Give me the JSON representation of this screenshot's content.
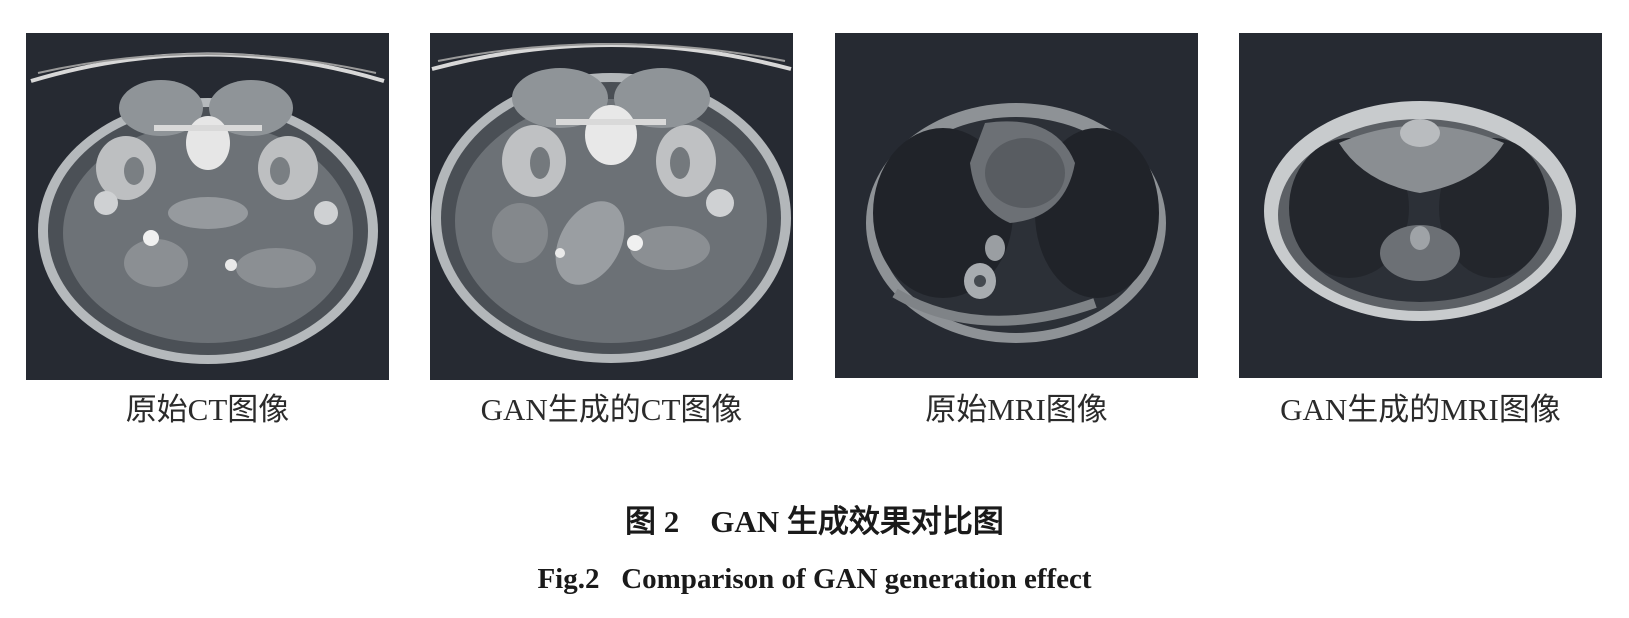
{
  "panels": [
    {
      "caption": "原始CT图像",
      "image": "axial-abdomen-ct-scan"
    },
    {
      "caption": "GAN生成的CT图像",
      "image": "axial-abdomen-ct-scan-generated"
    },
    {
      "caption": "原始MRI图像",
      "image": "axial-chest-mri-scan"
    },
    {
      "caption": "GAN生成的MRI图像",
      "image": "axial-chest-mri-scan-generated"
    }
  ],
  "figure": {
    "title_cn": "图 2    GAN 生成效果对比图",
    "title_en": "Fig.2   Comparison of GAN generation effect"
  }
}
